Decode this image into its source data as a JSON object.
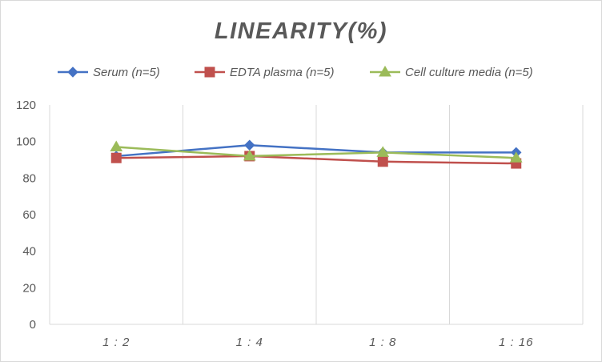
{
  "chart_data": {
    "type": "line",
    "title": "LINEARITY(%)",
    "categories": [
      "1:2",
      "1:4",
      "1:8",
      "1:16"
    ],
    "ylim": [
      0,
      120
    ],
    "yticks": [
      0,
      20,
      40,
      60,
      80,
      100,
      120
    ],
    "grid": "vertical",
    "legend_position": "top",
    "series": [
      {
        "name": "Serum (n=5)",
        "values": [
          92,
          98,
          94,
          94
        ],
        "color": "#4472c4",
        "marker": "diamond"
      },
      {
        "name": "EDTA plasma (n=5)",
        "values": [
          91,
          92,
          89,
          88
        ],
        "color": "#c0504d",
        "marker": "square"
      },
      {
        "name": "Cell culture media (n=5)",
        "values": [
          97,
          92,
          94,
          91
        ],
        "color": "#9bbb59",
        "marker": "triangle"
      }
    ]
  }
}
